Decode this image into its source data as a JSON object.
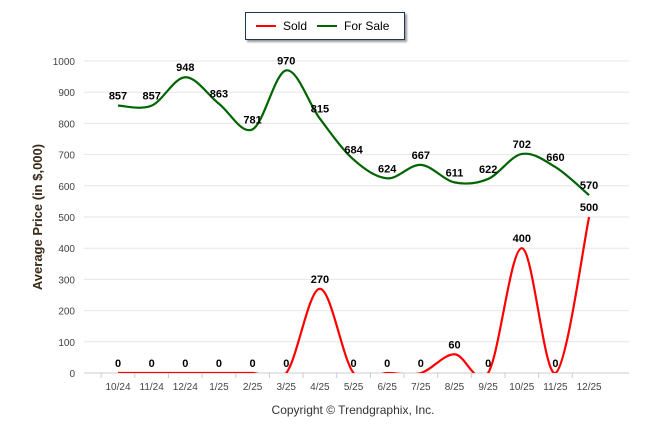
{
  "chart_data": {
    "type": "line",
    "title": "",
    "xlabel": "",
    "ylabel": "Average Price (in $,000)",
    "ylim": [
      0,
      1000
    ],
    "yticks": [
      0,
      100,
      200,
      300,
      400,
      500,
      600,
      700,
      800,
      900,
      1000
    ],
    "grid": true,
    "legend_position": "top-center",
    "categories": [
      "10/24",
      "11/24",
      "12/24",
      "1/25",
      "2/25",
      "3/25",
      "4/25",
      "5/25",
      "6/25",
      "7/25",
      "8/25",
      "9/25",
      "10/25",
      "11/25",
      "12/25"
    ],
    "series": [
      {
        "name": "Sold",
        "color": "#ff0000",
        "values": [
          0,
          0,
          0,
          0,
          0,
          0,
          270,
          0,
          0,
          0,
          60,
          0,
          400,
          0,
          500
        ]
      },
      {
        "name": "For Sale",
        "color": "#006400",
        "values": [
          857,
          857,
          948,
          863,
          781,
          970,
          815,
          684,
          624,
          667,
          611,
          622,
          702,
          660,
          570
        ]
      }
    ],
    "footer": "Copyright © Trendgraphix, Inc."
  }
}
